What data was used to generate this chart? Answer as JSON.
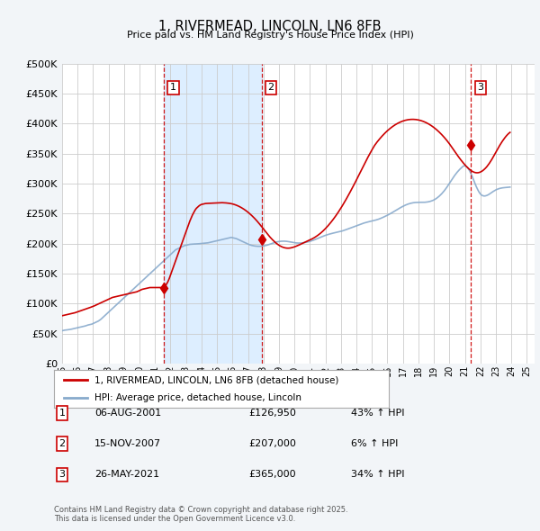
{
  "title": "1, RIVERMEAD, LINCOLN, LN6 8FB",
  "subtitle": "Price paid vs. HM Land Registry's House Price Index (HPI)",
  "legend_line1": "1, RIVERMEAD, LINCOLN, LN6 8FB (detached house)",
  "legend_line2": "HPI: Average price, detached house, Lincoln",
  "footer1": "Contains HM Land Registry data © Crown copyright and database right 2025.",
  "footer2": "This data is licensed under the Open Government Licence v3.0.",
  "sale_color": "#cc0000",
  "hpi_color": "#88aacc",
  "shade_color": "#ddeeff",
  "background_color": "#f2f5f8",
  "plot_bg_color": "#ffffff",
  "grid_color": "#cccccc",
  "ylim": [
    0,
    500000
  ],
  "yticks": [
    0,
    50000,
    100000,
    150000,
    200000,
    250000,
    300000,
    350000,
    400000,
    450000,
    500000
  ],
  "xlim": [
    1995,
    2025.5
  ],
  "sales": [
    {
      "year": 2001.58,
      "price": 126950,
      "label": "1"
    },
    {
      "year": 2007.88,
      "price": 207000,
      "label": "2"
    },
    {
      "year": 2021.4,
      "price": 365000,
      "label": "3"
    }
  ],
  "sale_vlines": [
    2001.58,
    2007.88,
    2021.4
  ],
  "shade_regions": [
    [
      2001.58,
      2007.88
    ]
  ],
  "table": [
    {
      "num": "1",
      "date": "06-AUG-2001",
      "price": "£126,950",
      "change": "43% ↑ HPI"
    },
    {
      "num": "2",
      "date": "15-NOV-2007",
      "price": "£207,000",
      "change": "6% ↑ HPI"
    },
    {
      "num": "3",
      "date": "26-MAY-2021",
      "price": "£365,000",
      "change": "34% ↑ HPI"
    }
  ],
  "hpi_data_monthly": {
    "start_year": 1995.0,
    "step": 0.08333,
    "values": [
      55000,
      55500,
      56000,
      56200,
      56500,
      56800,
      57000,
      57500,
      58000,
      58500,
      59000,
      59500,
      60000,
      60500,
      61000,
      61500,
      62000,
      62500,
      63000,
      63800,
      64500,
      65000,
      65500,
      66000,
      67000,
      68000,
      69000,
      70000,
      71000,
      72500,
      74000,
      76000,
      78000,
      80000,
      82000,
      84000,
      86000,
      88000,
      90000,
      92000,
      94000,
      96000,
      98000,
      100000,
      102000,
      104000,
      106000,
      108000,
      110000,
      112000,
      114000,
      116000,
      118000,
      120000,
      122000,
      124000,
      126000,
      128000,
      130000,
      132000,
      134000,
      136000,
      138000,
      140000,
      142000,
      144000,
      146000,
      148000,
      150000,
      152000,
      154000,
      156000,
      158000,
      160000,
      162000,
      164000,
      166000,
      168000,
      170000,
      172000,
      174000,
      176000,
      178000,
      180000,
      182000,
      184000,
      186000,
      188000,
      190000,
      191000,
      192000,
      193000,
      194000,
      195000,
      196000,
      197000,
      197500,
      198000,
      198500,
      199000,
      199200,
      199400,
      199500,
      199600,
      199700,
      199800,
      200000,
      200200,
      200400,
      200600,
      200800,
      201000,
      201200,
      201500,
      202000,
      202500,
      203000,
      203500,
      204000,
      204500,
      205000,
      205500,
      206000,
      206500,
      207000,
      207500,
      208000,
      208500,
      209000,
      209500,
      210000,
      210500,
      210000,
      209500,
      209000,
      208500,
      207500,
      206500,
      205500,
      204500,
      203500,
      202500,
      201500,
      200500,
      199500,
      198500,
      197800,
      197200,
      196700,
      196300,
      196000,
      195800,
      195700,
      195700,
      195800,
      196000,
      196300,
      196700,
      197200,
      197800,
      198500,
      199200,
      200000,
      200800,
      201500,
      202200,
      202800,
      203300,
      203700,
      204000,
      204200,
      204300,
      204300,
      204200,
      204000,
      203700,
      203300,
      202900,
      202500,
      202100,
      201700,
      201400,
      201200,
      201100,
      201100,
      201200,
      201400,
      201700,
      202000,
      202400,
      202900,
      203400,
      204000,
      204700,
      205400,
      206200,
      207000,
      207900,
      208800,
      209700,
      210600,
      211500,
      212400,
      213200,
      214000,
      214700,
      215400,
      216000,
      216600,
      217200,
      217700,
      218200,
      218700,
      219200,
      219700,
      220200,
      220700,
      221300,
      222000,
      222700,
      223500,
      224300,
      225100,
      226000,
      226800,
      227600,
      228400,
      229200,
      230000,
      230800,
      231600,
      232400,
      233200,
      233900,
      234600,
      235200,
      235800,
      236400,
      236900,
      237400,
      237900,
      238400,
      238900,
      239500,
      240100,
      240800,
      241600,
      242500,
      243400,
      244400,
      245400,
      246400,
      247500,
      248600,
      249800,
      251000,
      252300,
      253600,
      254900,
      256200,
      257500,
      258800,
      260000,
      261200,
      262300,
      263400,
      264400,
      265300,
      266100,
      266800,
      267400,
      267900,
      268300,
      268600,
      268800,
      268900,
      269000,
      269000,
      269000,
      269000,
      269000,
      269100,
      269300,
      269600,
      270000,
      270500,
      271200,
      272000,
      273000,
      274200,
      275600,
      277200,
      279000,
      281000,
      283200,
      285600,
      288200,
      291000,
      294000,
      297200,
      300500,
      303800,
      307100,
      310400,
      313500,
      316400,
      319100,
      321600,
      323900,
      326000,
      327900,
      329600,
      330000,
      329000,
      327000,
      324000,
      320000,
      315500,
      310500,
      305000,
      299500,
      294500,
      290000,
      286000,
      283000,
      281000,
      280000,
      279500,
      279800,
      280500,
      281500,
      282800,
      284300,
      285800,
      287200,
      288500,
      289700,
      290700,
      291500,
      292200,
      292700,
      293100,
      293400,
      293600,
      293800,
      294000,
      294200,
      294400
    ]
  },
  "sale_line_monthly": {
    "start_year": 1995.0,
    "step": 0.08333,
    "values": [
      80000,
      80500,
      81000,
      81500,
      82000,
      82500,
      83000,
      83500,
      84000,
      84500,
      85000,
      85800,
      86500,
      87200,
      88000,
      88800,
      89500,
      90200,
      91000,
      91800,
      92500,
      93200,
      94000,
      94800,
      95500,
      96500,
      97500,
      98500,
      99500,
      100500,
      101500,
      102500,
      103500,
      104500,
      105500,
      106500,
      107500,
      108500,
      109500,
      110500,
      111000,
      111500,
      112000,
      112500,
      113000,
      113500,
      114000,
      114500,
      115000,
      115500,
      116000,
      116500,
      117000,
      117500,
      118000,
      118500,
      119000,
      119500,
      120000,
      121000,
      122000,
      123000,
      124000,
      124500,
      125000,
      125500,
      126000,
      126500,
      126950,
      126950,
      126950,
      126950,
      126950,
      127000,
      127000,
      126950,
      126950,
      127000,
      127500,
      128000,
      130000,
      133000,
      137000,
      142000,
      148000,
      154000,
      160000,
      166000,
      172000,
      178000,
      184000,
      190000,
      196000,
      202000,
      208000,
      214000,
      220000,
      226000,
      232000,
      238000,
      243000,
      248000,
      252000,
      256000,
      259000,
      261000,
      263000,
      264500,
      265500,
      266000,
      266500,
      267000,
      267200,
      267300,
      267400,
      267500,
      267600,
      267700,
      267800,
      267900,
      268000,
      268100,
      268200,
      268300,
      268400,
      268300,
      268200,
      268000,
      267800,
      267500,
      267200,
      266800,
      266300,
      265700,
      265000,
      264200,
      263300,
      262300,
      261200,
      260000,
      258700,
      257300,
      255800,
      254200,
      252500,
      250700,
      248800,
      246800,
      244700,
      242500,
      240200,
      237800,
      235300,
      232700,
      230000,
      227300,
      224500,
      221700,
      219000,
      216300,
      213700,
      211200,
      208800,
      206600,
      204500,
      202500,
      200600,
      199000,
      197500,
      196200,
      195100,
      194200,
      193500,
      193000,
      192700,
      192600,
      192700,
      193000,
      193500,
      194100,
      194800,
      195600,
      196500,
      197400,
      198400,
      199400,
      200400,
      201400,
      202400,
      203400,
      204400,
      205400,
      206400,
      207400,
      208500,
      209700,
      211000,
      212400,
      213900,
      215500,
      217200,
      219000,
      221000,
      223100,
      225300,
      227600,
      230000,
      232500,
      235100,
      237800,
      240600,
      243500,
      246500,
      249600,
      252800,
      256100,
      259500,
      263000,
      266600,
      270300,
      274000,
      277800,
      281700,
      285700,
      289700,
      293700,
      297800,
      302000,
      306200,
      310500,
      314800,
      319100,
      323400,
      327700,
      332000,
      336300,
      340500,
      344600,
      348600,
      352500,
      356300,
      360000,
      363600,
      366600,
      369500,
      372200,
      374800,
      377300,
      379700,
      382000,
      384200,
      386300,
      388300,
      390200,
      392000,
      393700,
      395300,
      396800,
      398200,
      399500,
      400700,
      401800,
      402800,
      403700,
      404500,
      405200,
      405800,
      406300,
      406700,
      407000,
      407200,
      407300,
      407300,
      407200,
      407000,
      406700,
      406300,
      405800,
      405200,
      404500,
      403700,
      402800,
      401800,
      400700,
      399500,
      398200,
      396800,
      395300,
      393700,
      392000,
      390200,
      388300,
      386300,
      384200,
      382000,
      379700,
      377300,
      374800,
      372200,
      369500,
      366600,
      363600,
      360500,
      357400,
      354300,
      351200,
      348100,
      345100,
      342200,
      339400,
      336700,
      334100,
      331600,
      329200,
      327000,
      325000,
      323200,
      321600,
      320300,
      319300,
      318600,
      318300,
      318300,
      318700,
      319500,
      320600,
      322100,
      323900,
      326000,
      328400,
      331200,
      334200,
      337500,
      341000,
      344700,
      348600,
      352500,
      356400,
      360200,
      363900,
      367400,
      370700,
      373800,
      376700,
      379400,
      381800,
      383900,
      385600
    ]
  }
}
